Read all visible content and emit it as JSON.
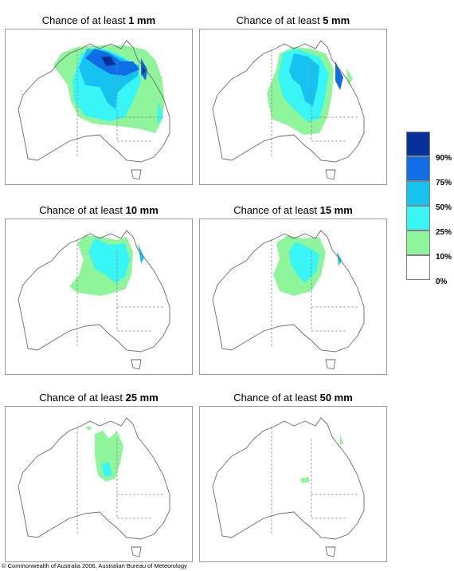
{
  "panels": [
    {
      "title_prefix": "Chance of at least",
      "threshold": "1 mm"
    },
    {
      "title_prefix": "Chance of at least",
      "threshold": "5 mm"
    },
    {
      "title_prefix": "Chance of at least",
      "threshold": "10 mm"
    },
    {
      "title_prefix": "Chance of at least",
      "threshold": "15 mm"
    },
    {
      "title_prefix": "Chance of at least",
      "threshold": "25 mm"
    },
    {
      "title_prefix": "Chance of at least",
      "threshold": "50 mm"
    }
  ],
  "legend": {
    "labels": [
      "90%",
      "75%",
      "50%",
      "25%",
      "10%",
      "0%"
    ],
    "colors": [
      "#08309a",
      "#0f6ee6",
      "#16c2f0",
      "#38f5f6",
      "#8ff59a",
      "#ffffff"
    ]
  },
  "colors": {
    "outline": "#6a6a6a",
    "border_dash": "#8a8a8a",
    "frame": "#9a9a9a"
  },
  "copyright": "© Commonwealth of Australia 2006, Australian Bureau of Meteorology"
}
